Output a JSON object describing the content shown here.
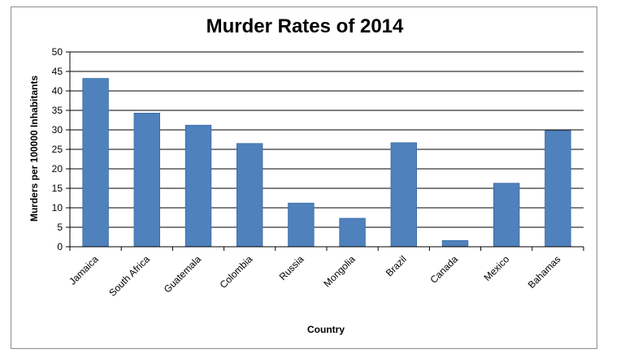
{
  "chart_data": {
    "type": "bar",
    "title": "Murder Rates of 2014",
    "xlabel": "Country",
    "ylabel": "Murders per 100000 Inhabitants",
    "categories": [
      "Jamaica",
      "South Africa",
      "Guatemala",
      "Colombia",
      "Russia",
      "Mongolia",
      "Brazil",
      "Canada",
      "Mexico",
      "Bahamas"
    ],
    "values": [
      43.2,
      34.3,
      31.2,
      26.5,
      11.2,
      7.3,
      26.7,
      1.6,
      16.3,
      29.8
    ],
    "ylim": [
      0,
      50
    ],
    "yticks": [
      0,
      5,
      10,
      15,
      20,
      25,
      30,
      35,
      40,
      45,
      50
    ],
    "grid": true,
    "legend": "none",
    "colors": {
      "bar": "#4f81bd",
      "bar_edge": "#3a6aa3",
      "grid": "#000000"
    }
  }
}
